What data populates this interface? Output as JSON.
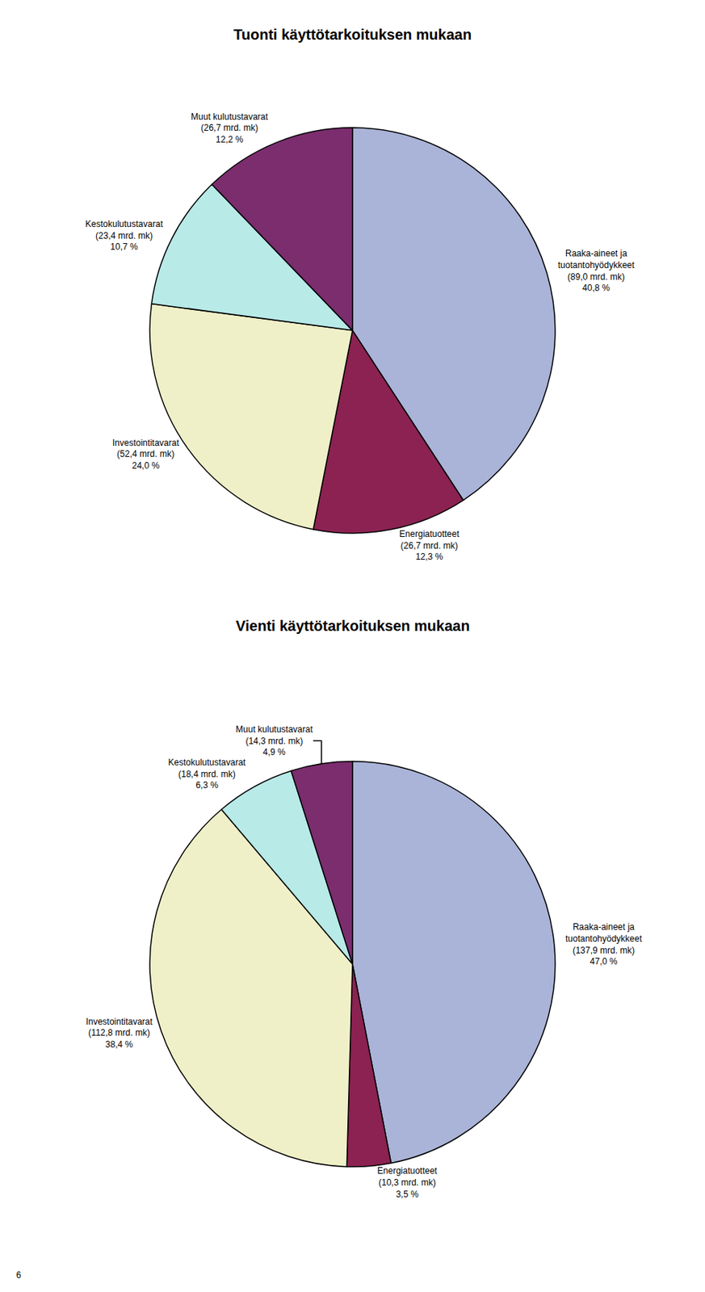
{
  "page_number": "6",
  "chart_data": [
    {
      "type": "pie",
      "title": "Tuonti käyttötarkoituksen mukaan",
      "categories": [
        "Raaka-aineet ja\ntuotantohyödykkeet",
        "Energiatuotteet",
        "Investointitavarat",
        "Kestokulutustavarat",
        "Muut kulutustavarat"
      ],
      "values": [
        40.8,
        12.3,
        24.0,
        10.7,
        12.2
      ],
      "value_labels": [
        "40,8 %",
        "12,3 %",
        "24,0 %",
        "10,7 %",
        "12,2 %"
      ],
      "amounts": [
        89.0,
        26.7,
        52.4,
        23.4,
        26.7
      ],
      "amount_labels": [
        "(89,0 mrd. mk)",
        "(26,7 mrd. mk)",
        "(52,4 mrd. mk)",
        "(23,4 mrd. mk)",
        "(26,7 mrd. mk)"
      ],
      "colors": [
        "#aab4d8",
        "#8b2252",
        "#f0f0c8",
        "#b8eae8",
        "#7b2d6e"
      ],
      "data_labels": true
    },
    {
      "type": "pie",
      "title": "Vienti käyttötarkoituksen mukaan",
      "categories": [
        "Raaka-aineet ja\ntuotantohyödykkeet",
        "Energiatuotteet",
        "Investointitavarat",
        "Kestokulutustavarat",
        "Muut kulutustavarat"
      ],
      "values": [
        47.0,
        3.5,
        38.4,
        6.3,
        4.9
      ],
      "value_labels": [
        "47,0 %",
        "3,5 %",
        "38,4 %",
        "6,3 %",
        "4,9 %"
      ],
      "amounts": [
        137.9,
        10.3,
        112.8,
        18.4,
        14.3
      ],
      "amount_labels": [
        "(137,9 mrd. mk)",
        "(10,3 mrd. mk)",
        "(112,8 mrd. mk)",
        "(18,4 mrd. mk)",
        "(14,3 mrd. mk)"
      ],
      "colors": [
        "#aab4d8",
        "#8b2252",
        "#f0f0c8",
        "#b8eae8",
        "#7b2d6e"
      ],
      "data_labels": true
    }
  ]
}
